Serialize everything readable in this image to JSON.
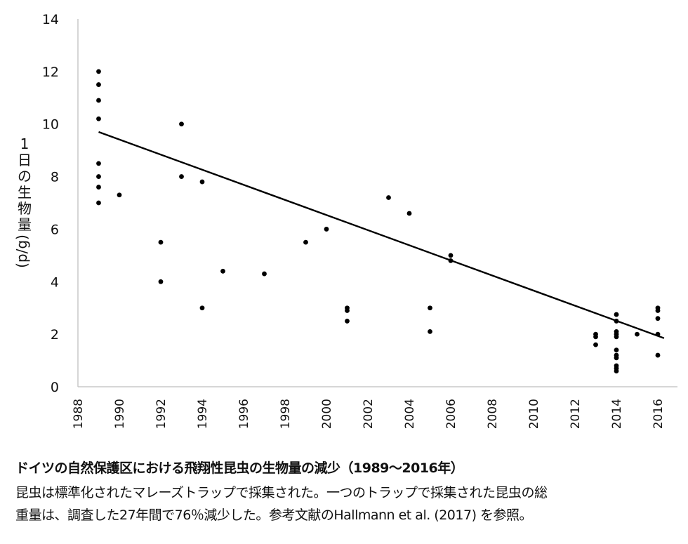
{
  "chart_data": {
    "type": "scatter",
    "title": "",
    "xlabel": "",
    "ylabel": "1日の生物量 (g/d)",
    "xlim": [
      1988,
      2016.9
    ],
    "ylim": [
      0,
      14
    ],
    "x_ticks": [
      1988,
      1990,
      1992,
      1994,
      1996,
      1998,
      2000,
      2002,
      2004,
      2006,
      2008,
      2010,
      2012,
      2014,
      2016
    ],
    "y_ticks": [
      0,
      2,
      4,
      6,
      8,
      10,
      12,
      14
    ],
    "grid": false,
    "legend": null,
    "series": [
      {
        "name": "biomass",
        "points": [
          [
            1989,
            12.0
          ],
          [
            1989,
            11.5
          ],
          [
            1989,
            10.9
          ],
          [
            1989,
            10.2
          ],
          [
            1989,
            8.5
          ],
          [
            1989,
            8.0
          ],
          [
            1989,
            7.6
          ],
          [
            1989,
            7.0
          ],
          [
            1990,
            7.3
          ],
          [
            1992,
            5.5
          ],
          [
            1992,
            4.0
          ],
          [
            1993,
            10.0
          ],
          [
            1993,
            8.0
          ],
          [
            1994,
            7.8
          ],
          [
            1994,
            3.0
          ],
          [
            1995,
            4.4
          ],
          [
            1997,
            4.3
          ],
          [
            1999,
            5.5
          ],
          [
            2000,
            6.0
          ],
          [
            2001,
            3.0
          ],
          [
            2001,
            2.9
          ],
          [
            2001,
            2.5
          ],
          [
            2003,
            7.2
          ],
          [
            2004,
            6.6
          ],
          [
            2005,
            3.0
          ],
          [
            2005,
            2.1
          ],
          [
            2006,
            5.0
          ],
          [
            2006,
            4.8
          ],
          [
            2013,
            2.0
          ],
          [
            2013,
            1.9
          ],
          [
            2013,
            1.6
          ],
          [
            2014,
            2.75
          ],
          [
            2014,
            2.5
          ],
          [
            2014,
            2.1
          ],
          [
            2014,
            2.0
          ],
          [
            2014,
            1.9
          ],
          [
            2014,
            1.4
          ],
          [
            2014,
            1.2
          ],
          [
            2014,
            1.1
          ],
          [
            2014,
            0.8
          ],
          [
            2014,
            0.7
          ],
          [
            2014,
            0.6
          ],
          [
            2015,
            2.0
          ],
          [
            2016,
            3.0
          ],
          [
            2016,
            2.9
          ],
          [
            2016,
            2.6
          ],
          [
            2016,
            2.0
          ],
          [
            2016,
            1.2
          ]
        ]
      }
    ],
    "trendline": {
      "x": [
        1989,
        2016.3
      ],
      "y": [
        9.7,
        1.85
      ]
    }
  },
  "axis": {
    "ylabel_chars": [
      "1",
      "日",
      "の",
      "生",
      "物",
      "量"
    ],
    "ylabel_unit": "(g/d)"
  },
  "caption": {
    "title": "ドイツの自然保護区における飛翔性昆虫の生物量の減少（1989〜2016年）",
    "line1": "昆虫は標準化されたマレーズトラップで採集された。一つのトラップで採集された昆虫の総",
    "line2": "重量は、調査した27年間で76％減少した。参考文献のHallmann et al. (2017) を参照。"
  }
}
